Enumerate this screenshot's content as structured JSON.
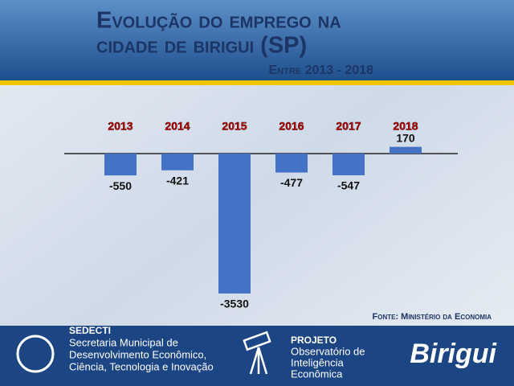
{
  "chart_data": {
    "type": "bar",
    "title_lines": [
      "Evolução do emprego na",
      "cidade de birigui (SP)"
    ],
    "subtitle": "Entre 2013 - 2018",
    "categories": [
      "2013",
      "2014",
      "2015",
      "2016",
      "2017",
      "2018"
    ],
    "values": [
      -550,
      -421,
      -3530,
      -477,
      -547,
      170
    ],
    "color": "#4472c4",
    "source": "Fonte: Ministério da Economia"
  },
  "footer": {
    "sedecti": {
      "name": "SEDECTI",
      "lines": [
        "Secretaria Municipal de",
        "Desenvolvimento Econômico,",
        "Ciência, Tecnologia e Inovação"
      ]
    },
    "projeto": {
      "name": "PROJETO",
      "lines": [
        "Observatório de",
        "Inteligência",
        "Econômica"
      ]
    },
    "brand": "Birigui"
  }
}
